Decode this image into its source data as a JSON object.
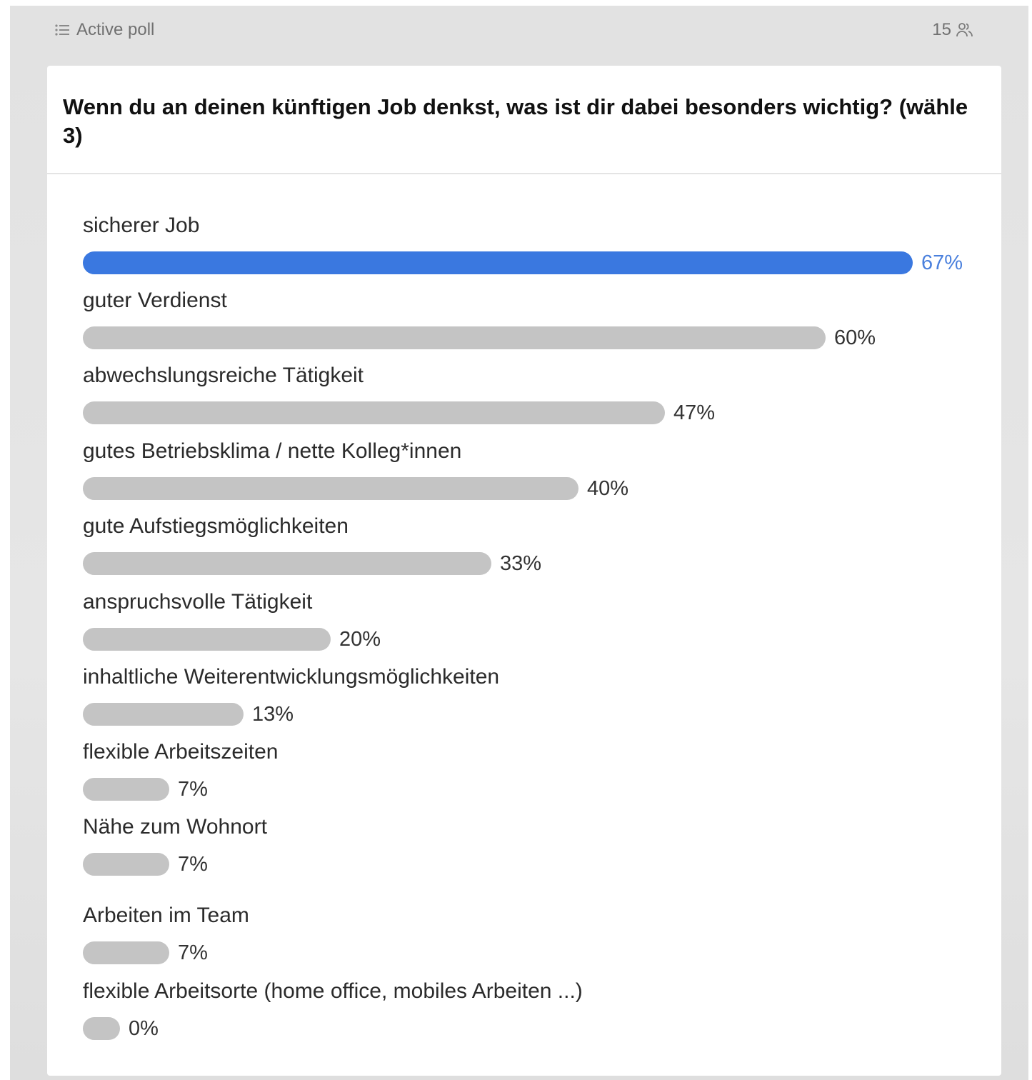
{
  "header": {
    "poll_label": "Active poll",
    "participants": "15",
    "list_icon": "list-icon",
    "participants_icon": "users-icon"
  },
  "poll": {
    "question": "Wenn du an deinen künftigen Job denkst, was ist dir dabei besonders wichtig? (wähle 3)",
    "options": [
      {
        "label": "sicherer Job",
        "percent_text": "67%",
        "value": 67
      },
      {
        "label": "guter Verdienst",
        "percent_text": "60%",
        "value": 60
      },
      {
        "label": "abwechslungsreiche Tätigkeit",
        "percent_text": "47%",
        "value": 47
      },
      {
        "label": "gutes Betriebsklima / nette Kolleg*innen",
        "percent_text": "40%",
        "value": 40
      },
      {
        "label": "gute Aufstiegsmöglichkeiten",
        "percent_text": "33%",
        "value": 33
      },
      {
        "label": "anspruchsvolle Tätigkeit",
        "percent_text": "20%",
        "value": 20
      },
      {
        "label": "inhaltliche Weiterentwicklungsmöglichkeiten",
        "percent_text": "13%",
        "value": 13
      },
      {
        "label": "flexible Arbeitszeiten",
        "percent_text": "7%",
        "value": 7
      },
      {
        "label": "Nähe zum Wohnort",
        "percent_text": "7%",
        "value": 7
      },
      {
        "label": "Arbeiten im Team",
        "percent_text": "7%",
        "value": 7
      },
      {
        "label": "flexible Arbeitsorte (home office, mobiles Arbeiten ...)",
        "percent_text": "0%",
        "value": 0
      }
    ]
  },
  "colors": {
    "leading_bar": "#3a78e0",
    "leading_text": "#4a80dd",
    "other_bar": "#c4c4c4",
    "background": "#e4e4e4"
  }
}
